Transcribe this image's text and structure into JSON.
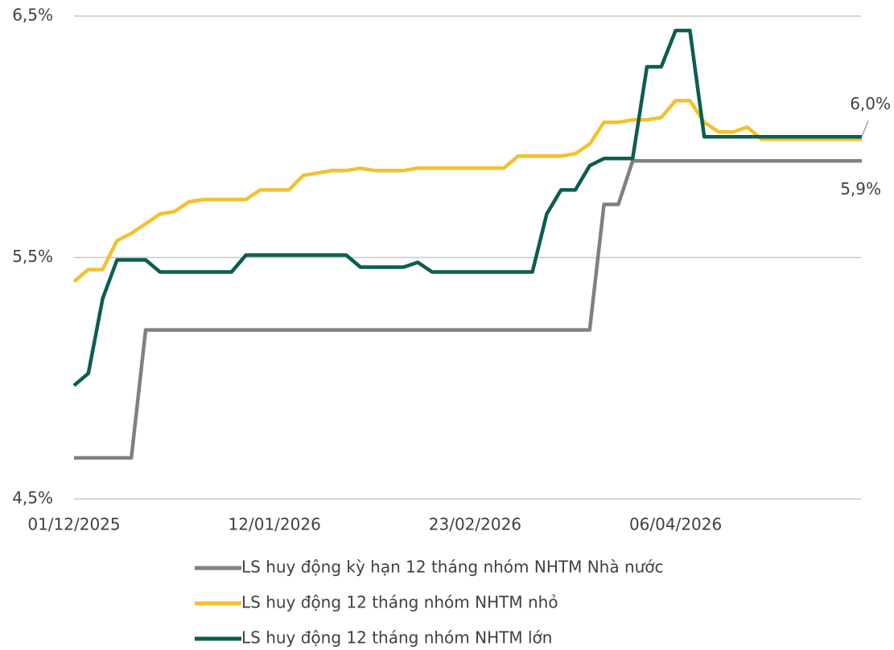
{
  "chart_data": {
    "type": "line",
    "categories": [
      "01/12/2025",
      null,
      null,
      null,
      null,
      null,
      null,
      null,
      null,
      null,
      null,
      null,
      null,
      null,
      "12/01/2026",
      null,
      null,
      null,
      null,
      null,
      null,
      null,
      null,
      null,
      null,
      null,
      null,
      null,
      "23/02/2026",
      null,
      null,
      null,
      null,
      null,
      null,
      null,
      null,
      null,
      null,
      null,
      null,
      null,
      "06/04/2026",
      null,
      null,
      null,
      null,
      null,
      null,
      null,
      null,
      null,
      null,
      null,
      null,
      null
    ],
    "series": [
      {
        "name": "LS huy động kỳ hạn 12 tháng nhóm NHTM Nhà nước",
        "color": "#808080",
        "values": [
          4.67,
          4.67,
          4.67,
          4.67,
          4.67,
          5.2,
          5.2,
          5.2,
          5.2,
          5.2,
          5.2,
          5.2,
          5.2,
          5.2,
          5.2,
          5.2,
          5.2,
          5.2,
          5.2,
          5.2,
          5.2,
          5.2,
          5.2,
          5.2,
          5.2,
          5.2,
          5.2,
          5.2,
          5.2,
          5.2,
          5.2,
          5.2,
          5.2,
          5.2,
          5.2,
          5.2,
          5.2,
          5.72,
          5.72,
          5.9,
          5.9,
          5.9,
          5.9,
          5.9,
          5.9,
          5.9,
          5.9,
          5.9,
          5.9,
          5.9,
          5.9,
          5.9,
          5.9,
          5.9,
          5.9,
          5.9
        ],
        "value_labels": [
          null,
          null,
          null,
          null,
          null,
          null,
          null,
          null,
          null,
          null,
          null,
          null,
          null,
          null,
          null,
          null,
          null,
          null,
          null,
          null,
          null,
          null,
          null,
          null,
          null,
          null,
          null,
          null,
          null,
          null,
          null,
          null,
          null,
          null,
          null,
          null,
          null,
          null,
          null,
          null,
          null,
          null,
          null,
          null,
          null,
          null,
          null,
          null,
          null,
          null,
          null,
          null,
          null,
          null,
          null,
          "5,9%"
        ]
      },
      {
        "name": "LS huy động 12 tháng nhóm NHTM nhỏ",
        "color": "#f2c12e",
        "values": [
          5.4,
          5.45,
          5.45,
          5.57,
          5.6,
          5.64,
          5.68,
          5.69,
          5.73,
          5.74,
          5.74,
          5.74,
          5.74,
          5.78,
          5.78,
          5.78,
          5.84,
          5.85,
          5.86,
          5.86,
          5.87,
          5.86,
          5.86,
          5.86,
          5.87,
          5.87,
          5.87,
          5.87,
          5.87,
          5.87,
          5.87,
          5.92,
          5.92,
          5.92,
          5.92,
          5.93,
          5.97,
          6.06,
          6.06,
          6.07,
          6.07,
          6.08,
          6.15,
          6.15,
          6.06,
          6.02,
          6.02,
          6.04,
          5.99,
          5.99,
          5.99,
          5.99,
          5.99,
          5.99,
          5.99,
          5.99
        ]
      },
      {
        "name": "LS huy động 12 tháng nhóm NHTM lớn",
        "color": "#0b5e4f",
        "values": [
          4.97,
          5.02,
          5.33,
          5.49,
          5.49,
          5.49,
          5.44,
          5.44,
          5.44,
          5.44,
          5.44,
          5.44,
          5.51,
          5.51,
          5.51,
          5.51,
          5.51,
          5.51,
          5.51,
          5.51,
          5.46,
          5.46,
          5.46,
          5.46,
          5.48,
          5.44,
          5.44,
          5.44,
          5.44,
          5.44,
          5.44,
          5.44,
          5.44,
          5.68,
          5.78,
          5.78,
          5.88,
          5.91,
          5.91,
          5.91,
          6.29,
          6.29,
          6.44,
          6.44,
          6.0,
          6.0,
          6.0,
          6.0,
          6.0,
          6.0,
          6.0,
          6.0,
          6.0,
          6.0,
          6.0,
          6.0
        ],
        "value_labels": [
          null,
          null,
          null,
          null,
          null,
          null,
          null,
          null,
          null,
          null,
          null,
          null,
          null,
          null,
          null,
          null,
          null,
          null,
          null,
          null,
          null,
          null,
          null,
          null,
          null,
          null,
          null,
          null,
          null,
          null,
          null,
          null,
          null,
          null,
          null,
          null,
          null,
          null,
          null,
          null,
          null,
          null,
          null,
          null,
          null,
          null,
          null,
          null,
          null,
          null,
          null,
          null,
          null,
          null,
          null,
          "6,0%"
        ]
      }
    ],
    "ylim": [
      4.5,
      6.5
    ],
    "yticks": [
      {
        "value": 4.5,
        "label": "4,5%"
      },
      {
        "value": 5.5,
        "label": "5,5%"
      },
      {
        "value": 6.5,
        "label": "6,5%"
      }
    ],
    "grid": true,
    "legend": "bottom"
  }
}
